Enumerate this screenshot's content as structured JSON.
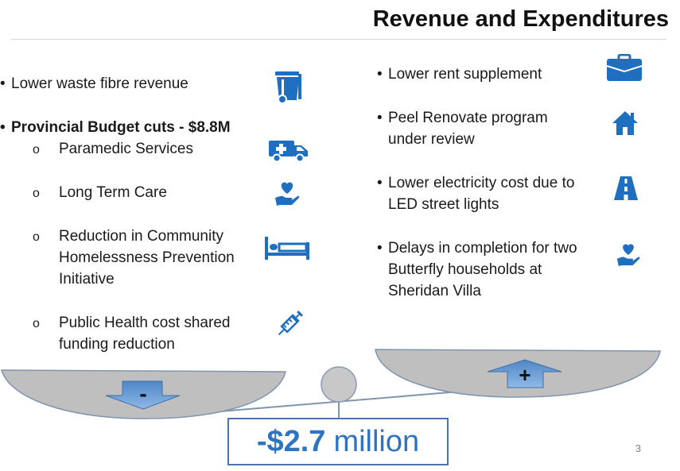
{
  "title": "Revenue and Expenditures",
  "left_items": [
    {
      "text": "Lower waste fibre revenue",
      "icon": "waste-bin-icon"
    },
    {
      "text": "Provincial Budget cuts - $8.8M",
      "bold": true
    },
    {
      "text": "Paramedic Services",
      "icon": "ambulance-icon"
    },
    {
      "text": "Long Term Care",
      "icon": "heart-in-hand-icon"
    },
    {
      "line1": "Reduction in Community",
      "line2": "Homelessness Prevention",
      "line3": "Initiative",
      "icon": "bed-icon"
    },
    {
      "line1": "Public Health cost shared",
      "line2": "funding reduction",
      "icon": "syringe-icon"
    }
  ],
  "right_items": [
    {
      "text": "Lower rent supplement",
      "icon": "briefcase-icon"
    },
    {
      "line1": "Peel Renovate program",
      "line2": "under review",
      "icon": "house-icon"
    },
    {
      "line1": "Lower electricity cost due to",
      "line2": "LED street lights",
      "icon": "road-icon"
    },
    {
      "line1": "Delays in completion for two",
      "line2": "Butterfly households at",
      "line3": "Sheridan Villa",
      "icon": "heart-in-hand-icon"
    }
  ],
  "scale": {
    "minus_label": "-",
    "plus_label": "+"
  },
  "total": {
    "amount": "-$2.7",
    "unit": "million"
  },
  "page_number": "3",
  "colors": {
    "accent": "#2e74c0",
    "icon_blue": "#1f6fc1",
    "pan_gray": "#bfbfbf",
    "arrow_blue": "#5b9bd5"
  }
}
